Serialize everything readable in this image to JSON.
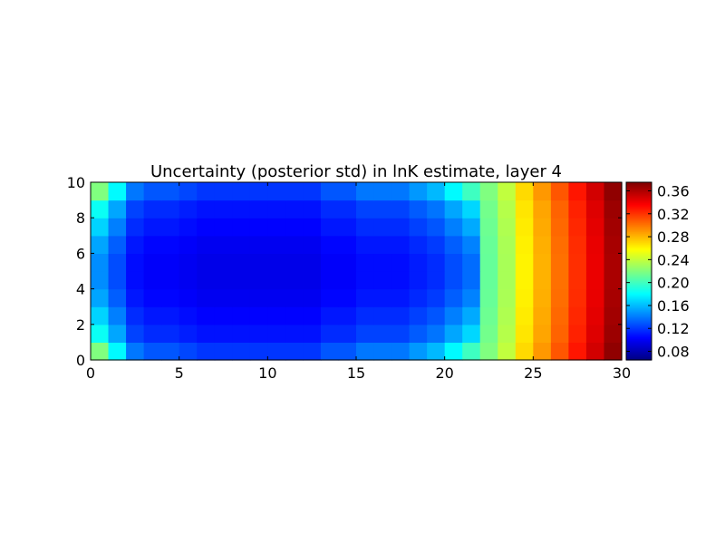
{
  "chart_data": {
    "type": "heatmap",
    "title": "Uncertainty (posterior std) in lnK estimate, layer 4",
    "xlabel": "",
    "ylabel": "",
    "xlim": [
      0,
      30
    ],
    "ylim": [
      0,
      10
    ],
    "xticks": [
      0,
      5,
      10,
      15,
      20,
      25,
      30
    ],
    "yticks": [
      0,
      2,
      4,
      6,
      8,
      10
    ],
    "colorbar": {
      "colormap": "jet",
      "vmin": 0.065,
      "vmax": 0.375,
      "ticks": [
        0.08,
        0.12,
        0.16,
        0.2,
        0.24,
        0.28,
        0.32,
        0.36
      ],
      "tick_labels": [
        "0.08",
        "0.12",
        "0.16",
        "0.20",
        "0.24",
        "0.28",
        "0.32",
        "0.36"
      ]
    },
    "grid": false,
    "nx": 30,
    "ny": 10,
    "col_profile": [
      0.22,
      0.18,
      0.14,
      0.13,
      0.13,
      0.125,
      0.12,
      0.12,
      0.12,
      0.12,
      0.12,
      0.12,
      0.12,
      0.13,
      0.13,
      0.14,
      0.14,
      0.14,
      0.15,
      0.16,
      0.18,
      0.2,
      0.22,
      0.24,
      0.27,
      0.29,
      0.31,
      0.33,
      0.35,
      0.37
    ],
    "row_factor": [
      1.0,
      0.62,
      0.45,
      0.3,
      0.22,
      0.22,
      0.3,
      0.45,
      0.62,
      1.0
    ],
    "row_note": "rows listed from y=0 (bottom) to y=10 (top)"
  }
}
